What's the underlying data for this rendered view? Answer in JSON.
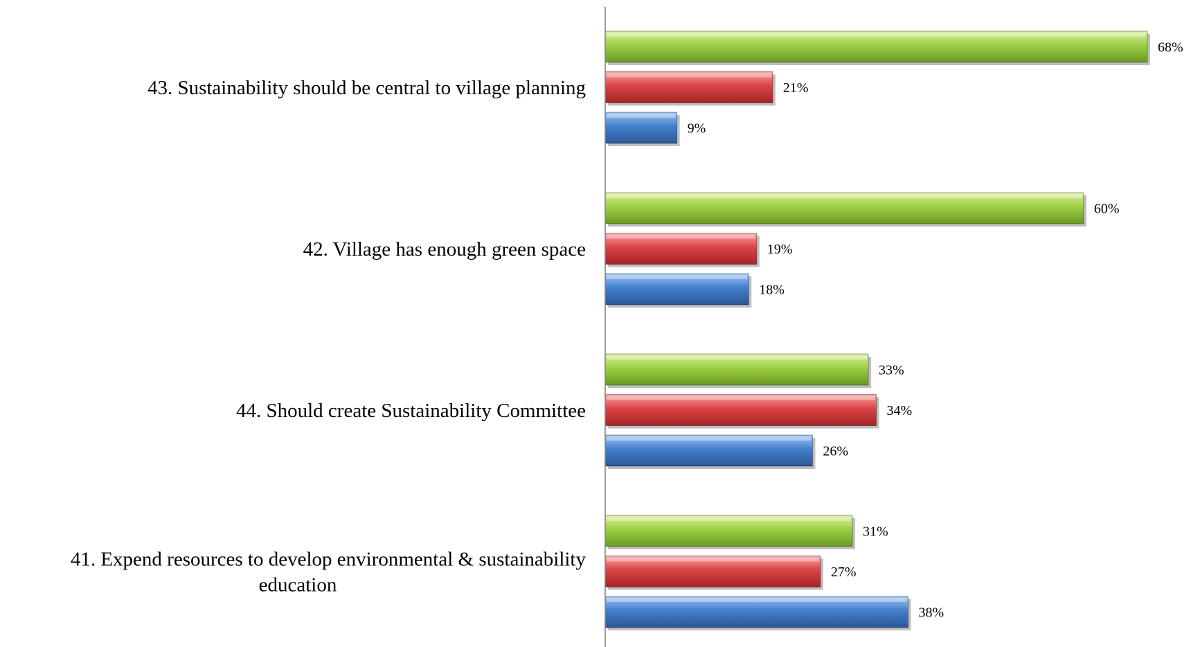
{
  "chart_data": {
    "type": "bar",
    "orientation": "horizontal",
    "categories": [
      "43. Sustainability should be central to village planning",
      "42. Village has enough green space",
      "44. Should create Sustainability Committee",
      "41. Expend resources to develop environmental &  sustainability education"
    ],
    "category_lines": [
      [
        "43. Sustainability should be central to village planning"
      ],
      [
        "42. Village has enough green space"
      ],
      [
        "44. Should create Sustainability Committee"
      ],
      [
        "41. Expend resources to develop environmental &  sustainability",
        "education"
      ]
    ],
    "series": [
      {
        "values": [
          68,
          60,
          33,
          31
        ],
        "labels": [
          "68%",
          "60%",
          "33%",
          "31%"
        ],
        "color": "#8fbf3a"
      },
      {
        "values": [
          21,
          19,
          34,
          27
        ],
        "labels": [
          "21%",
          "19%",
          "34%",
          "27%"
        ],
        "color": "#d8484b"
      },
      {
        "values": [
          9,
          18,
          26,
          38
        ],
        "labels": [
          "9%",
          "18%",
          "26%",
          "38%"
        ],
        "color": "#3f7fcf"
      }
    ],
    "xlim": [
      0,
      68
    ],
    "grid": false,
    "legend": "none",
    "title": "",
    "xlabel": "",
    "ylabel": ""
  }
}
